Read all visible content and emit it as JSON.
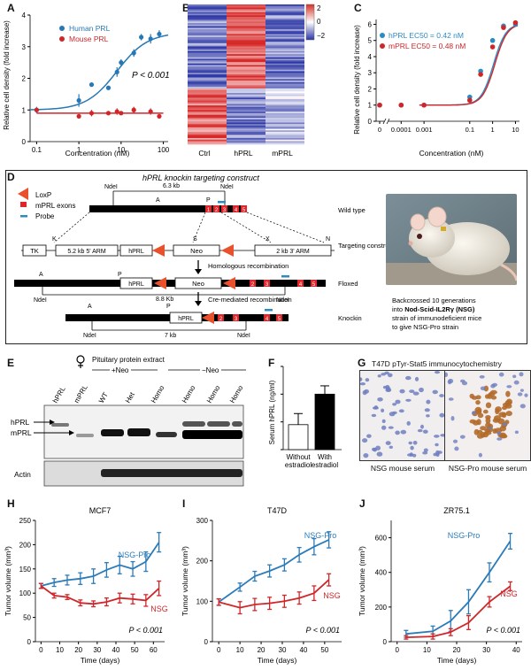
{
  "panels": {
    "A": "A",
    "B": "B",
    "C": "C",
    "D": "D",
    "E": "E",
    "F": "F",
    "G": "G",
    "H": "H",
    "I": "I",
    "J": "J"
  },
  "panelA": {
    "ylabel": "Relative cell density (fold increase)",
    "xlabel": "Concentration (nM)",
    "legend": [
      "Human PRL",
      "Mouse PRL"
    ],
    "pvalue": "P < 0.001",
    "colors": {
      "human": "#2878b5",
      "mouse": "#d0262a"
    }
  },
  "panelB": {
    "columns": [
      "Ctrl",
      "hPRL",
      "mPRL"
    ],
    "colorbar_ticks": [
      "2",
      "0",
      "−2"
    ]
  },
  "panelC": {
    "ylabel": "Relative cell density (fold increase)",
    "xlabel": "Concentration (nM)",
    "legend": [
      "hPRL EC50 = 0.42 nM",
      "mPRL EC50 = 0.48 nM"
    ]
  },
  "panelD": {
    "title": "hPRL knockin targeting construct",
    "legend": [
      "LoxP",
      "mPRL exons",
      "Probe"
    ],
    "row_labels": [
      "Wild type",
      "Targeting construct",
      "Floxed",
      "Knockin"
    ],
    "steps": [
      "Homologous recombination",
      "Cre-mediated recombination"
    ],
    "sizes": [
      "6.3 kb",
      "8.8 Kb",
      "7 kb"
    ],
    "arms": [
      "5.2 kb 5' ARM",
      "2 kb 3' ARM"
    ],
    "boxes": [
      "TK",
      "hPRL",
      "Neo"
    ],
    "sites": [
      "NdeI",
      "A",
      "P",
      "K",
      "S",
      "X",
      "N"
    ],
    "caption_parts": [
      "Backcrossed 10 generations into ",
      "Nod-Scid-IL2Rγ (NSG)",
      " strain of immunodeficient mice to give NSG-Pro strain"
    ]
  },
  "panelE": {
    "header": "Pituitary protein extract",
    "groups": [
      "+Neo",
      "−Neo"
    ],
    "lanes": [
      "hPRL",
      "mPRL",
      "WT",
      "Het",
      "Homo",
      "Homo",
      "Homo",
      "Homo"
    ],
    "bands": [
      "hPRL",
      "mPRL"
    ],
    "actin": "Actin"
  },
  "panelF": {
    "ylabel": "Serum hPRL (ng/ml)",
    "bars": [
      "Without estradiol",
      "With estradiol"
    ]
  },
  "panelG": {
    "title": "T47D pTyr-Stat5 immunocytochemistry",
    "captions": [
      "NSG mouse serum",
      "NSG-Pro mouse serum"
    ]
  },
  "growth": {
    "ylabel": "Tumor volume (mm³)",
    "xlabel": "Time (days)",
    "pvalue": "P < 0.001",
    "series_names": [
      "NSG-Pro",
      "NSG"
    ]
  },
  "chart_data": [
    {
      "type": "scatter",
      "panel": "A",
      "title": "",
      "xlabel": "Concentration (nM)",
      "ylabel": "Relative cell density (fold increase)",
      "xscale": "log",
      "xlim": [
        0.07,
        130
      ],
      "ylim": [
        0,
        4
      ],
      "xticks": [
        0.1,
        1,
        10,
        100
      ],
      "yticks": [
        0,
        1,
        2,
        3,
        4
      ],
      "series": [
        {
          "name": "Human PRL",
          "x": [
            0.1,
            1,
            2,
            5,
            8,
            10,
            20,
            30,
            50,
            80
          ],
          "y": [
            1.0,
            1.3,
            1.8,
            1.7,
            2.2,
            2.5,
            2.8,
            3.3,
            3.25,
            3.4
          ],
          "err": [
            0.1,
            0.2,
            0,
            0,
            0.15,
            0.1,
            0.12,
            0.1,
            0.15,
            0.12
          ]
        },
        {
          "name": "Mouse PRL",
          "x": [
            0.1,
            1,
            2,
            5,
            8,
            10,
            20,
            50,
            80
          ],
          "y": [
            1.0,
            0.8,
            0.9,
            0.9,
            0.95,
            0.9,
            1.0,
            0.95,
            0.8
          ],
          "err": [
            0,
            0,
            0.1,
            0,
            0.1,
            0,
            0.1,
            0.1,
            0
          ]
        }
      ]
    },
    {
      "type": "heatmap",
      "panel": "B",
      "columns": [
        "Ctrl",
        "hPRL",
        "mPRL"
      ],
      "range": [
        -2,
        2
      ],
      "blocks": [
        {
          "rows": "upper 60%",
          "values": [
            -1.3,
            1.6,
            -1.3
          ]
        },
        {
          "rows": "lower 40%",
          "values": [
            1.4,
            -1.2,
            -0.6
          ]
        }
      ]
    },
    {
      "type": "scatter",
      "panel": "C",
      "xlabel": "Concentration (nM)",
      "ylabel": "Relative cell density (fold increase)",
      "xticks": [
        "0",
        "0.0001",
        "0.001",
        "0.1",
        "1",
        "10"
      ],
      "yticks": [
        0,
        1,
        2,
        3,
        4,
        5,
        6
      ],
      "ylim": [
        0,
        6.3
      ],
      "series": [
        {
          "name": "hPRL EC50 = 0.42 nM",
          "x": [
            0,
            0.0001,
            0.001,
            0.1,
            0.3,
            1,
            3,
            10
          ],
          "y": [
            1.0,
            1.0,
            1.0,
            1.5,
            3.1,
            5.0,
            5.9,
            6.0
          ]
        },
        {
          "name": "mPRL EC50 = 0.48 nM",
          "x": [
            0,
            0.0001,
            0.001,
            0.1,
            0.3,
            1,
            3,
            10
          ],
          "y": [
            1.0,
            1.0,
            1.0,
            1.3,
            2.9,
            4.6,
            5.8,
            6.1
          ]
        }
      ]
    },
    {
      "type": "bar",
      "panel": "F",
      "categories": [
        "Without estradiol",
        "With estradiol"
      ],
      "values": [
        9,
        20
      ],
      "err": [
        4,
        3
      ],
      "ylabel": "Serum hPRL (ng/ml)",
      "ylim": [
        0,
        30
      ],
      "yticks": [
        0,
        10,
        20,
        30
      ]
    },
    {
      "type": "line",
      "panel": "H",
      "title": "MCF7",
      "xlabel": "Time (days)",
      "ylabel": "Tumor volume (mm³)",
      "xlim": [
        -3,
        66
      ],
      "ylim": [
        0,
        250
      ],
      "xticks": [
        0,
        10,
        20,
        30,
        40,
        50,
        60
      ],
      "yticks": [
        0,
        50,
        100,
        150,
        200,
        250
      ],
      "series": [
        {
          "name": "NSG-Pro",
          "x": [
            0,
            7,
            14,
            21,
            28,
            35,
            42,
            49,
            56,
            63
          ],
          "y": [
            115,
            122,
            127,
            130,
            135,
            148,
            158,
            150,
            165,
            205
          ],
          "err": [
            5,
            8,
            10,
            12,
            15,
            15,
            18,
            15,
            20,
            20
          ]
        },
        {
          "name": "NSG",
          "x": [
            0,
            7,
            14,
            21,
            28,
            35,
            42,
            49,
            56,
            63
          ],
          "y": [
            115,
            95,
            92,
            80,
            78,
            82,
            90,
            88,
            85,
            110
          ],
          "err": [
            5,
            5,
            5,
            6,
            6,
            8,
            10,
            10,
            12,
            15
          ]
        }
      ]
    },
    {
      "type": "line",
      "panel": "I",
      "title": "T47D",
      "xlabel": "Time (days)",
      "ylabel": "Tumor volume (mm³)",
      "xlim": [
        -3,
        58
      ],
      "ylim": [
        0,
        300
      ],
      "xticks": [
        0,
        10,
        20,
        30,
        40,
        50
      ],
      "yticks": [
        0,
        100,
        200,
        300
      ],
      "series": [
        {
          "name": "NSG-Pro",
          "x": [
            0,
            10,
            17,
            24,
            31,
            38,
            45,
            52
          ],
          "y": [
            98,
            135,
            162,
            175,
            190,
            215,
            235,
            252
          ],
          "err": [
            8,
            10,
            12,
            15,
            15,
            18,
            20,
            20
          ]
        },
        {
          "name": "NSG",
          "x": [
            0,
            10,
            17,
            24,
            31,
            38,
            45,
            52
          ],
          "y": [
            98,
            84,
            92,
            95,
            100,
            108,
            120,
            153
          ],
          "err": [
            8,
            15,
            15,
            15,
            15,
            15,
            18,
            15
          ]
        }
      ]
    },
    {
      "type": "line",
      "panel": "J",
      "title": "ZR75.1",
      "xlabel": "Time (days)",
      "ylabel": "Tumor volume (mm³)",
      "xlim": [
        -2,
        42
      ],
      "ylim": [
        0,
        700
      ],
      "xticks": [
        0,
        10,
        20,
        30,
        40
      ],
      "yticks": [
        0,
        200,
        400,
        600
      ],
      "series": [
        {
          "name": "NSG-Pro",
          "x": [
            3,
            12,
            18,
            24,
            31,
            38
          ],
          "y": [
            45,
            60,
            120,
            230,
            400,
            580
          ],
          "err": [
            20,
            30,
            60,
            70,
            55,
            45
          ]
        },
        {
          "name": "NSG",
          "x": [
            3,
            12,
            18,
            24,
            31,
            38
          ],
          "y": [
            25,
            30,
            55,
            110,
            230,
            320
          ],
          "err": [
            10,
            15,
            20,
            40,
            30,
            25
          ]
        }
      ]
    }
  ]
}
